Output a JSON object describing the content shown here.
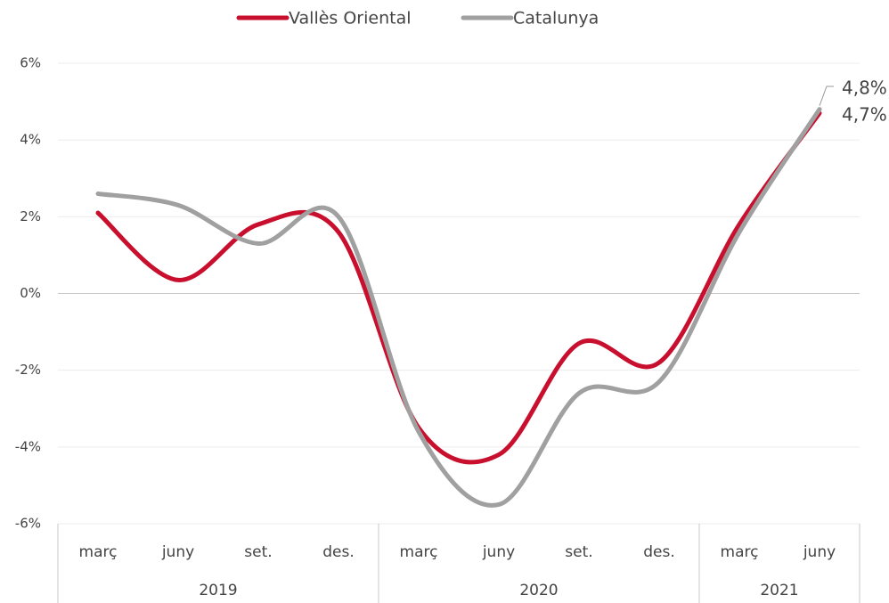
{
  "chart_data": {
    "type": "line",
    "categories": [
      "març",
      "juny",
      "set.",
      "des.",
      "març",
      "juny",
      "set.",
      "des.",
      "març",
      "juny"
    ],
    "groups": [
      {
        "label": "2019",
        "count": 4
      },
      {
        "label": "2020",
        "count": 4
      },
      {
        "label": "2021",
        "count": 2
      }
    ],
    "series": [
      {
        "name": "Vallès Oriental",
        "color": "#c8102e",
        "values": [
          2.1,
          0.35,
          1.8,
          1.6,
          -3.5,
          -4.2,
          -1.3,
          -1.8,
          1.8,
          4.7
        ],
        "value_labels": [
          null,
          null,
          null,
          null,
          null,
          null,
          null,
          null,
          null,
          "4,7%"
        ]
      },
      {
        "name": "Catalunya",
        "color": "#a0a0a0",
        "values": [
          2.6,
          2.3,
          1.3,
          2.0,
          -3.6,
          -5.5,
          -2.6,
          -2.3,
          1.6,
          4.8
        ],
        "value_labels": [
          null,
          null,
          null,
          null,
          null,
          null,
          null,
          null,
          null,
          "4,8%"
        ]
      }
    ],
    "ylim": [
      -6,
      6
    ],
    "yticks": [
      {
        "value": -6,
        "label": "-6%"
      },
      {
        "value": -4,
        "label": "-4%"
      },
      {
        "value": -2,
        "label": "-2%"
      },
      {
        "value": 0,
        "label": "0%"
      },
      {
        "value": 2,
        "label": "2%"
      },
      {
        "value": 4,
        "label": "4%"
      },
      {
        "value": 6,
        "label": "6%"
      }
    ],
    "grid": true,
    "legend": "top"
  }
}
